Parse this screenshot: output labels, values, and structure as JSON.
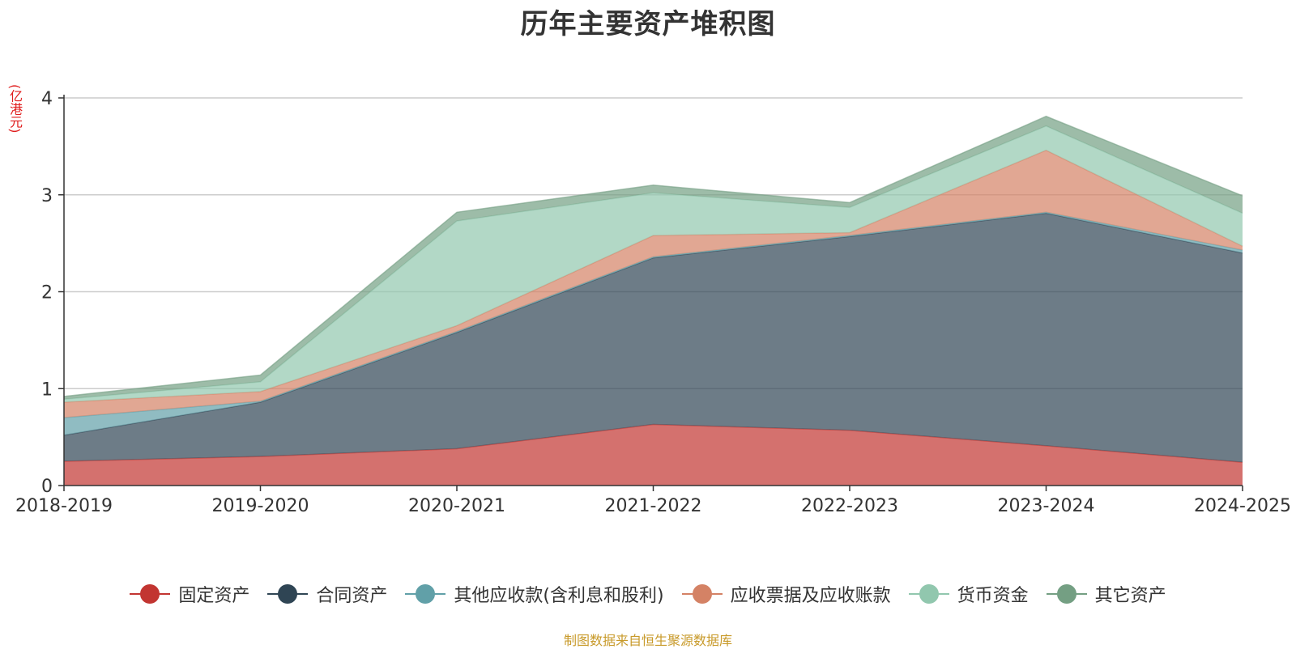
{
  "chart_data": {
    "type": "area",
    "stacked": true,
    "title": "历年主要资产堆积图",
    "y_unit_label": "(亿港元)",
    "source_note": "制图数据来自恒生聚源数据库",
    "categories": [
      "2018-2019",
      "2019-2020",
      "2020-2021",
      "2021-2022",
      "2022-2023",
      "2023-2024",
      "2024-2025"
    ],
    "ylim": [
      0,
      4
    ],
    "yticks": [
      0,
      1,
      2,
      3,
      4
    ],
    "grid": true,
    "legend_position": "bottom",
    "series": [
      {
        "name": "固定资产",
        "color": "#c23531",
        "values": [
          0.25,
          0.3,
          0.38,
          0.63,
          0.57,
          0.41,
          0.24
        ]
      },
      {
        "name": "合同资产",
        "color": "#2f4554",
        "values": [
          0.27,
          0.56,
          1.2,
          1.72,
          2.0,
          2.4,
          2.16
        ]
      },
      {
        "name": "其他应收款(含利息和股利)",
        "color": "#61a0a8",
        "values": [
          0.18,
          0.01,
          0.01,
          0.01,
          0.01,
          0.01,
          0.03
        ]
      },
      {
        "name": "应收票据及应收账款",
        "color": "#d48265",
        "values": [
          0.16,
          0.1,
          0.06,
          0.22,
          0.03,
          0.64,
          0.04
        ]
      },
      {
        "name": "货币资金",
        "color": "#91c7ae",
        "values": [
          0.03,
          0.1,
          1.08,
          0.44,
          0.26,
          0.25,
          0.34
        ]
      },
      {
        "name": "其它资产",
        "color": "#749f83",
        "values": [
          0.03,
          0.07,
          0.09,
          0.08,
          0.05,
          0.1,
          0.18
        ]
      }
    ]
  }
}
